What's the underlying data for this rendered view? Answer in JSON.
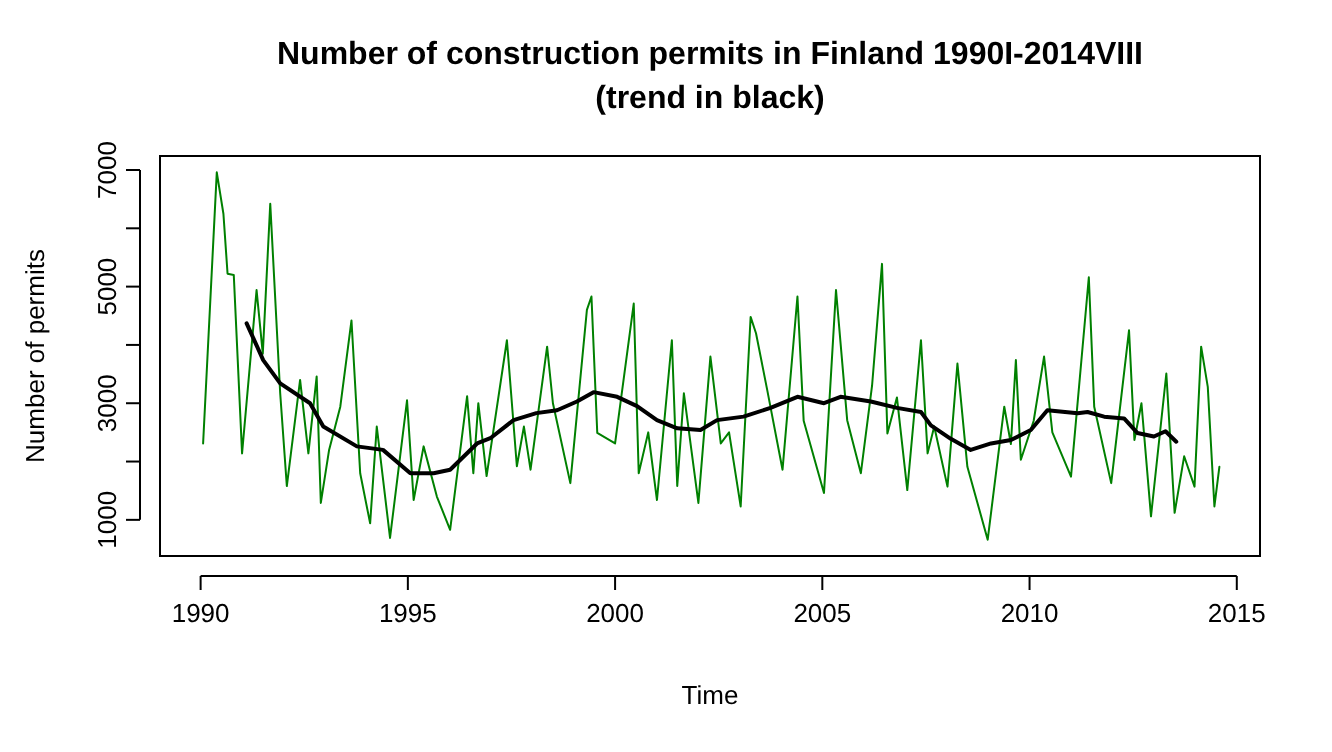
{
  "chart_data": {
    "type": "line",
    "title": "Number of construction permits in Finland 1990I-2014VIII\n(trend in black)",
    "xlabel": "Time",
    "ylabel": "Number of permits",
    "xlim": [
      1989.02,
      2015.56
    ],
    "xticks": [
      1990,
      1995,
      2000,
      2005,
      2010,
      2015
    ],
    "ylim": [
      380,
      7240
    ],
    "yticks": [
      1000,
      {
        "value": 2000,
        "label": null
      },
      3000,
      {
        "value": 4000,
        "label": null
      },
      5000,
      {
        "value": 6000,
        "label": null
      },
      7000
    ],
    "grid": false,
    "line_style": "solid",
    "marker": "none",
    "series": [
      {
        "color": "#008000",
        "x": [
          1990.06,
          1990.39,
          1990.55,
          1990.65,
          1990.8,
          1991.0,
          1991.35,
          1991.5,
          1991.68,
          1991.92,
          1992.08,
          1992.4,
          1992.6,
          1992.8,
          1992.9,
          1993.1,
          1993.37,
          1993.64,
          1993.85,
          1994.09,
          1994.25,
          1994.57,
          1994.98,
          1995.14,
          1995.38,
          1995.7,
          1996.02,
          1996.43,
          1996.58,
          1996.7,
          1996.9,
          1997.39,
          1997.63,
          1997.8,
          1997.96,
          1998.36,
          1998.5,
          1998.92,
          1999.32,
          1999.43,
          1999.57,
          2000.0,
          2000.45,
          2000.57,
          2000.8,
          2001.01,
          2001.37,
          2001.5,
          2001.66,
          2002.01,
          2002.3,
          2002.55,
          2002.75,
          2003.03,
          2003.27,
          2003.4,
          2003.67,
          2004.04,
          2004.4,
          2004.55,
          2005.04,
          2005.33,
          2005.6,
          2005.93,
          2006.2,
          2006.44,
          2006.57,
          2006.8,
          2007.05,
          2007.38,
          2007.54,
          2007.7,
          2008.02,
          2008.26,
          2008.5,
          2008.99,
          2009.39,
          2009.55,
          2009.67,
          2009.79,
          2010.1,
          2010.35,
          2010.55,
          2011.0,
          2011.43,
          2011.56,
          2011.97,
          2012.4,
          2012.53,
          2012.7,
          2012.93,
          2013.3,
          2013.5,
          2013.73,
          2013.98,
          2014.14,
          2014.3,
          2014.46,
          2014.58
        ],
        "values": [
          2310,
          6960,
          6250,
          5220,
          5200,
          2140,
          4940,
          3850,
          6420,
          3170,
          1580,
          3400,
          2140,
          3460,
          1290,
          2200,
          2940,
          4420,
          1800,
          940,
          2600,
          690,
          3050,
          1340,
          2260,
          1400,
          830,
          3120,
          1800,
          3000,
          1750,
          4080,
          1920,
          2600,
          1860,
          3970,
          3000,
          1630,
          4600,
          4830,
          2490,
          2310,
          4710,
          1800,
          2500,
          1340,
          4080,
          1580,
          3170,
          1290,
          3800,
          2310,
          2500,
          1230,
          4480,
          4200,
          3230,
          1860,
          4830,
          2700,
          1460,
          4940,
          2710,
          1800,
          3300,
          5390,
          2480,
          3100,
          1510,
          4080,
          2140,
          2600,
          1570,
          3680,
          1910,
          660,
          2940,
          2300,
          3740,
          2030,
          2700,
          3800,
          2500,
          1740,
          5160,
          2940,
          1630,
          4250,
          2370,
          3000,
          1060,
          3510,
          1120,
          2090,
          1570,
          3970,
          3280,
          1230,
          1910
        ]
      },
      {
        "color": "#000000",
        "x": [
          1991.11,
          1991.51,
          1991.92,
          1992.64,
          1992.96,
          1993.77,
          1994.4,
          1995.06,
          1995.62,
          1996.02,
          1996.67,
          1996.99,
          1997.55,
          1998.1,
          1998.6,
          1999.08,
          1999.48,
          2000.05,
          2000.53,
          2001.01,
          2001.5,
          2002.06,
          2002.46,
          2003.1,
          2003.75,
          2004.4,
          2005.04,
          2005.44,
          2006.17,
          2006.8,
          2007.38,
          2007.62,
          2008.1,
          2008.58,
          2009.07,
          2009.55,
          2010.03,
          2010.43,
          2011.16,
          2011.4,
          2011.8,
          2012.28,
          2012.6,
          2013.0,
          2013.28,
          2013.54
        ],
        "values": [
          4370,
          3740,
          3340,
          3000,
          2600,
          2260,
          2200,
          1800,
          1800,
          1860,
          2310,
          2400,
          2710,
          2830,
          2880,
          3030,
          3190,
          3110,
          2950,
          2710,
          2570,
          2540,
          2710,
          2770,
          2920,
          3110,
          3000,
          3110,
          3030,
          2920,
          2850,
          2620,
          2390,
          2200,
          2310,
          2370,
          2540,
          2880,
          2830,
          2850,
          2770,
          2740,
          2490,
          2430,
          2520,
          2340
        ]
      }
    ]
  }
}
